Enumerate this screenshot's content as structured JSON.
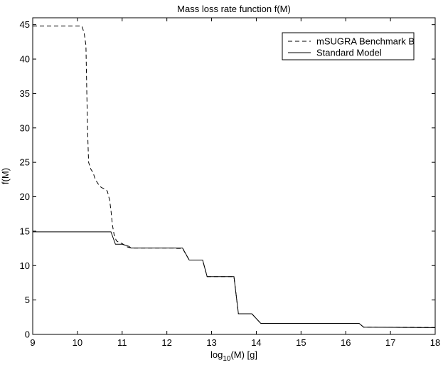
{
  "chart_data": {
    "type": "line",
    "title": "Mass loss rate function f(M)",
    "xlabel": {
      "prefix": "log",
      "subscript": "10",
      "suffix": "(M) [g]"
    },
    "ylabel": "f(M)",
    "xlim": [
      9,
      18
    ],
    "ylim": [
      0,
      46
    ],
    "xticks": [
      9,
      10,
      11,
      12,
      13,
      14,
      15,
      16,
      17,
      18
    ],
    "yticks": [
      0,
      5,
      10,
      15,
      20,
      25,
      30,
      35,
      40,
      45
    ],
    "grid": false,
    "legend_position": "top-right",
    "series": [
      {
        "name": "mSUGRA Benchmark B",
        "style": "dashed",
        "color": "#000000",
        "points": [
          [
            9,
            44.8
          ],
          [
            10.1,
            44.8
          ],
          [
            10.15,
            43.8
          ],
          [
            10.19,
            42
          ],
          [
            10.21,
            35
          ],
          [
            10.23,
            29
          ],
          [
            10.25,
            25
          ],
          [
            10.3,
            24
          ],
          [
            10.35,
            23.5
          ],
          [
            10.4,
            22.5
          ],
          [
            10.45,
            22
          ],
          [
            10.5,
            21.5
          ],
          [
            10.55,
            21.3
          ],
          [
            10.62,
            21.1
          ],
          [
            10.67,
            20.8
          ],
          [
            10.72,
            19.5
          ],
          [
            10.75,
            18
          ],
          [
            10.78,
            16
          ],
          [
            10.82,
            14.5
          ],
          [
            10.87,
            13.6
          ],
          [
            10.92,
            13.4
          ],
          [
            11.0,
            13.2
          ],
          [
            11.05,
            13.0
          ],
          [
            11.12,
            12.7
          ],
          [
            11.2,
            12.55
          ],
          [
            12.18,
            12.55
          ],
          [
            12.2,
            12.5
          ],
          [
            12.35,
            12.5
          ],
          [
            12.5,
            10.8
          ],
          [
            12.8,
            10.8
          ],
          [
            12.9,
            8.4
          ],
          [
            13.5,
            8.4
          ],
          [
            13.6,
            3.0
          ],
          [
            13.9,
            3.0
          ],
          [
            14.1,
            1.6
          ],
          [
            16.3,
            1.6
          ],
          [
            16.4,
            1.05
          ],
          [
            18,
            1.0
          ]
        ]
      },
      {
        "name": "Standard Model",
        "style": "solid",
        "color": "#000000",
        "points": [
          [
            9,
            14.9
          ],
          [
            10.75,
            14.9
          ],
          [
            10.85,
            13.1
          ],
          [
            11.0,
            13.1
          ],
          [
            11.05,
            13.0
          ],
          [
            11.15,
            12.8
          ],
          [
            11.2,
            12.55
          ],
          [
            12.35,
            12.55
          ],
          [
            12.5,
            10.8
          ],
          [
            12.8,
            10.8
          ],
          [
            12.9,
            8.4
          ],
          [
            13.5,
            8.4
          ],
          [
            13.6,
            3.0
          ],
          [
            13.9,
            3.0
          ],
          [
            14.1,
            1.6
          ],
          [
            16.3,
            1.6
          ],
          [
            16.4,
            1.05
          ],
          [
            18,
            1.0
          ]
        ]
      }
    ]
  }
}
